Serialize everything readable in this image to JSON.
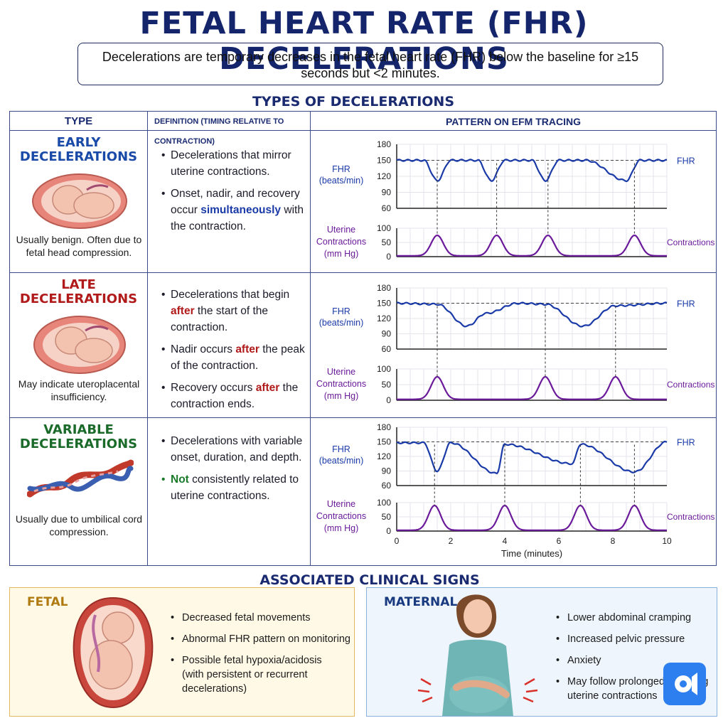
{
  "title": "FETAL HEART RATE (FHR) DECELERATIONS",
  "definition": "Decelerations are temporary decreases in the fetal heart rate (FHR) below the baseline for ≥15 seconds but <2 minutes.",
  "types_heading": "TYPES OF DECELERATIONS",
  "table_headers": {
    "type": "TYPE",
    "definition": "DEFINITION (TIMING RELATIVE TO CONTRACTION)",
    "pattern": "PATTERN ON EFM TRACING"
  },
  "colors": {
    "navy": "#14256b",
    "early": "#1a4aa8",
    "late": "#b01a1a",
    "variable": "#1a6a2a",
    "fhr_line": "#1a3aa8",
    "contraction_line": "#6a1a9a"
  },
  "rows": [
    {
      "type_line1": "EARLY",
      "type_line2": "DECELERATIONS",
      "note": "Usually benign. Often due to fetal head compression.",
      "bullet1": "Decelerations that mirror uterine contractions.",
      "bullet2_pre": "Onset, nadir, and recovery occur ",
      "bullet2_hl": "simultaneously",
      "bullet2_post": " with the contraction.",
      "illustration": "uterus-fetus-icon"
    },
    {
      "type_line1": "LATE",
      "type_line2": "DECELERATIONS",
      "note": "May indicate uteroplacental insufficiency.",
      "bullet1_pre": "Decelerations that begin ",
      "bullet1_hl": "after",
      "bullet1_post": " the start of the contraction.",
      "bullet2_pre": "Nadir occurs ",
      "bullet2_hl": "after",
      "bullet2_post": " the peak of the contraction.",
      "bullet3_pre": "Recovery occurs ",
      "bullet3_hl": "after",
      "bullet3_post": " the contraction ends.",
      "illustration": "uterus-fetus-icon"
    },
    {
      "type_line1": "VARIABLE",
      "type_line2": "DECELERATIONS",
      "note": "Usually due to umbilical cord compression.",
      "bullet1": "Decelerations with variable onset, duration, and depth.",
      "bullet2_hl": "Not",
      "bullet2_post": " consistently related to uterine contractions.",
      "illustration": "umbilical-cord-icon"
    }
  ],
  "chart_labels": {
    "fhr_axis_line1": "FHR",
    "fhr_axis_line2": "(beats/min)",
    "uc_axis_line1": "Uterine",
    "uc_axis_line2": "Contractions",
    "uc_axis_line3": "(mm Hg)",
    "fhr_series": "FHR",
    "uc_series": "Contractions",
    "fhr_ticks": [
      "180",
      "150",
      "120",
      "90",
      "60"
    ],
    "uc_ticks": [
      "100",
      "50",
      "0"
    ],
    "x_ticks": [
      "0",
      "2",
      "4",
      "6",
      "8",
      "10"
    ],
    "x_label": "Time (minutes)"
  },
  "chart_data": [
    {
      "type": "line",
      "panel": "Early Decelerations",
      "x": [
        0,
        1,
        1.5,
        2,
        3,
        3.5,
        4,
        5,
        5.5,
        6,
        7,
        8.5,
        9,
        10
      ],
      "series": [
        {
          "name": "FHR",
          "values": [
            150,
            150,
            112,
            150,
            150,
            112,
            150,
            150,
            112,
            150,
            150,
            112,
            150,
            150
          ]
        }
      ],
      "contractions": {
        "name": "Contractions",
        "peaks_x": [
          1.5,
          3.7,
          5.6,
          8.8
        ],
        "peak_value": 75
      },
      "ylim_fhr": [
        60,
        180
      ],
      "ylim_uc": [
        0,
        100
      ],
      "xlim": [
        0,
        10
      ]
    },
    {
      "type": "line",
      "panel": "Late Decelerations",
      "x": [
        0,
        1.5,
        2.6,
        3.3,
        4.5,
        5.5,
        6.9,
        8.1,
        10
      ],
      "series": [
        {
          "name": "FHR",
          "values": [
            150,
            148,
            105,
            130,
            150,
            148,
            105,
            145,
            150
          ]
        }
      ],
      "contractions": {
        "name": "Contractions",
        "peaks_x": [
          1.5,
          5.5,
          8.1
        ],
        "peak_value": 75
      },
      "ylim_fhr": [
        60,
        180
      ],
      "ylim_uc": [
        0,
        100
      ],
      "xlim": [
        0,
        10
      ]
    },
    {
      "type": "line",
      "panel": "Variable Decelerations",
      "x": [
        0,
        1,
        1.5,
        2,
        3.7,
        4,
        6.5,
        6.8,
        8.8,
        10
      ],
      "series": [
        {
          "name": "FHR",
          "values": [
            148,
            148,
            90,
            148,
            85,
            145,
            105,
            145,
            88,
            150
          ]
        }
      ],
      "contractions": {
        "name": "Contractions",
        "peaks_x": [
          1.4,
          4.0,
          6.8,
          8.8
        ],
        "peak_value": 90
      },
      "ylim_fhr": [
        60,
        180
      ],
      "ylim_uc": [
        0,
        100
      ],
      "xlim": [
        0,
        10
      ],
      "xlabel": "Time (minutes)"
    }
  ],
  "clinical_heading": "ASSOCIATED CLINICAL SIGNS",
  "fetal": {
    "title": "FETAL",
    "items": [
      "Decreased fetal movements",
      "Abnormal FHR pattern on monitoring",
      "Possible fetal hypoxia/acidosis"
    ],
    "item3_sub": "(with persistent or recurrent decelerations)"
  },
  "maternal": {
    "title": "MATERNAL",
    "items": [
      "Lower abdominal cramping",
      "Increased pelvic pressure",
      "Anxiety",
      "May follow prolonged or strong uterine contractions"
    ]
  }
}
